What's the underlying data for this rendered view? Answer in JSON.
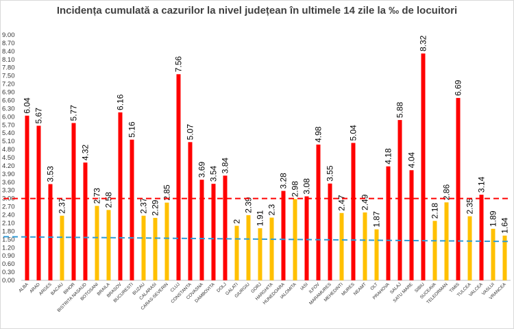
{
  "chart_data": {
    "type": "bar",
    "title": "Incidența cumulată a cazurilor la nivel județean în ultimele 14 zile la ‰ de locuitori",
    "xlabel": "",
    "ylabel": "",
    "ylim": [
      0,
      9.0
    ],
    "ytick_step": 0.3,
    "grid": false,
    "legend": "none",
    "categories": [
      "ALBA",
      "ARAD",
      "ARGES",
      "BACAU",
      "BIHOR",
      "BISTRITA NASAUD",
      "BOTOSANI",
      "BRAILA",
      "BRASOV",
      "BUCURESTI",
      "BUZAU",
      "CALARASI",
      "CARAS-SEVERIN",
      "CLUJ",
      "CONSTANTA",
      "COVASNA",
      "DAMBOVITA",
      "DOLJ",
      "GALATI",
      "GIURGIU",
      "GORJ",
      "HARGHITA",
      "HUNEDOARA",
      "IALOMITA",
      "IASI",
      "ILFOV",
      "MARAMURES",
      "MEHEDINTI",
      "MURES",
      "NEAMT",
      "OLT",
      "PRAHOVA",
      "SALAJ",
      "SATU MARE",
      "SIBIU",
      "SUCEAVA",
      "TELEORMAN",
      "TIMIS",
      "TULCEA",
      "VALCEA",
      "VASLUI",
      "VRANCEA"
    ],
    "values": [
      6.04,
      5.67,
      3.53,
      2.37,
      5.77,
      4.32,
      2.73,
      2.58,
      6.16,
      5.16,
      2.37,
      2.29,
      2.85,
      7.56,
      5.07,
      3.69,
      3.54,
      3.84,
      2,
      2.39,
      1.91,
      2.3,
      3.28,
      2.98,
      3.08,
      4.98,
      3.55,
      2.47,
      5.04,
      2.49,
      1.87,
      4.18,
      5.88,
      4.04,
      8.32,
      2.18,
      2.86,
      6.69,
      2.35,
      3.14,
      1.89,
      1.64
    ],
    "value_labels": [
      "6.04",
      "5.67",
      "3.53",
      "2.37",
      "5.77",
      "4.32",
      "2.73",
      "2.58",
      "6.16",
      "5.16",
      "2.37",
      "2.29",
      "2.85",
      "7.56",
      "5.07",
      "3.69",
      "3.54",
      "3.84",
      "2",
      "2.39",
      "1.91",
      "2.3",
      "3.28",
      "2.98",
      "3.08",
      "4.98",
      "3.55",
      "2.47",
      "5.04",
      "2.49",
      "1.87",
      "4.18",
      "5.88",
      "4.04",
      "8.32",
      "2.18",
      "2.86",
      "6.69",
      "2.35",
      "3.14",
      "1.89",
      "1.64"
    ],
    "threshold_red": 3.0,
    "threshold_blue": 1.5,
    "colors": {
      "above_threshold": "#FF0000",
      "below_threshold": "#FFC000",
      "red_line": "#FF0000",
      "blue_line": "#2E9BD6"
    }
  }
}
